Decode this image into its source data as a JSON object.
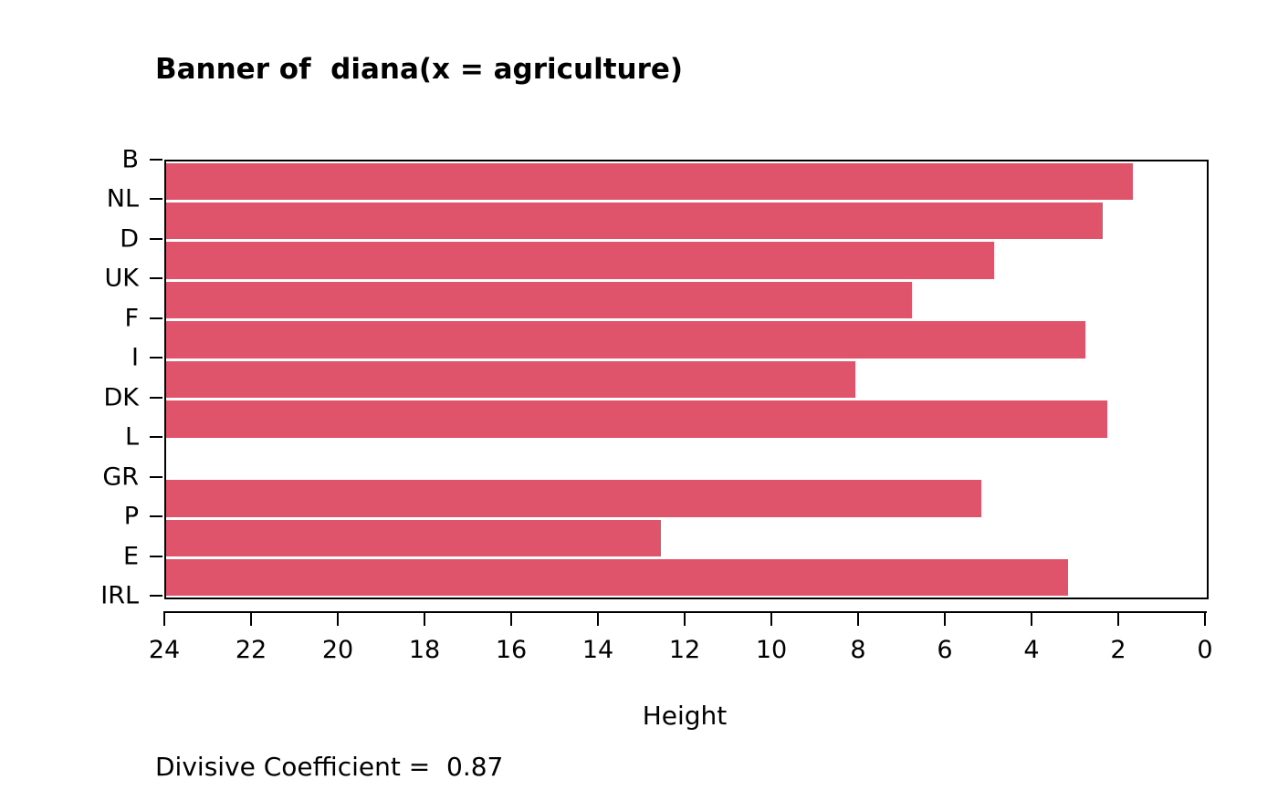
{
  "chart_data": {
    "type": "bar",
    "variant": "banner-plot-divisive-clustering",
    "title": "Banner of  diana(x = agriculture)",
    "xlabel": "Height",
    "annotation": "Divisive Coefficient =  0.87",
    "divisive_coefficient": 0.87,
    "bar_color": "#DF536B",
    "background_color": "#FFFFFF",
    "axis": {
      "label": "Height",
      "min": 0,
      "max": 24,
      "reversed": true,
      "ticks": [
        24,
        22,
        20,
        18,
        16,
        14,
        12,
        10,
        8,
        6,
        4,
        2,
        0
      ]
    },
    "objects": [
      "B",
      "NL",
      "D",
      "UK",
      "F",
      "I",
      "DK",
      "L",
      "GR",
      "P",
      "E",
      "IRL"
    ],
    "bars": [
      {
        "between": [
          "B",
          "NL"
        ],
        "height": 1.7
      },
      {
        "between": [
          "NL",
          "D"
        ],
        "height": 2.4
      },
      {
        "between": [
          "D",
          "UK"
        ],
        "height": 4.9
      },
      {
        "between": [
          "UK",
          "F"
        ],
        "height": 6.8
      },
      {
        "between": [
          "F",
          "I"
        ],
        "height": 2.8
      },
      {
        "between": [
          "I",
          "DK"
        ],
        "height": 8.1
      },
      {
        "between": [
          "DK",
          "L"
        ],
        "height": 2.3
      },
      {
        "between": [
          "L",
          "GR"
        ],
        "height": 24
      },
      {
        "between": [
          "GR",
          "P"
        ],
        "height": 5.2
      },
      {
        "between": [
          "P",
          "E"
        ],
        "height": 12.6
      },
      {
        "between": [
          "E",
          "IRL"
        ],
        "height": 3.2
      }
    ]
  }
}
